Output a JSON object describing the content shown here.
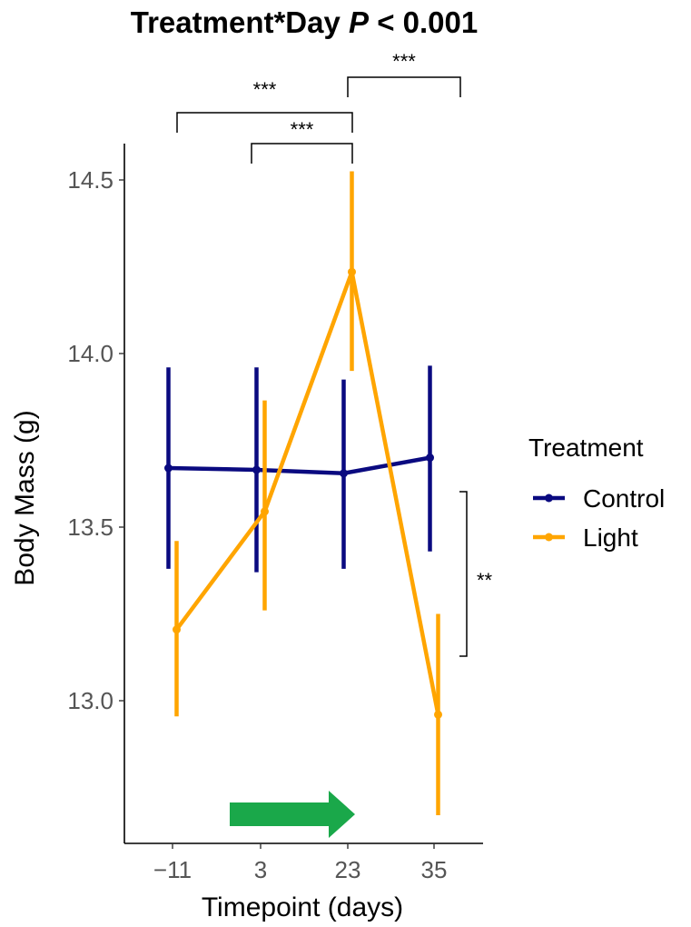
{
  "chart_data": {
    "type": "line",
    "title_prefix": "Treatment*Day ",
    "title_p": "P",
    "title_suffix": " < 0.001",
    "xlabel": "Timepoint (days)",
    "ylabel": "Body Mass (g)",
    "categories": [
      "−11",
      "3",
      "23",
      "35"
    ],
    "y_ticks": [
      "13.0",
      "13.5",
      "14.0",
      "14.5"
    ],
    "ylim": [
      12.6,
      14.62
    ],
    "grid": false,
    "legend_position": "right",
    "legend_title": "Treatment",
    "series": [
      {
        "name": "Control",
        "color": "#0a0a80",
        "values": [
          13.67,
          13.665,
          13.655,
          13.7
        ],
        "lower": [
          13.38,
          13.37,
          13.38,
          13.43
        ],
        "upper": [
          13.96,
          13.96,
          13.925,
          13.965
        ]
      },
      {
        "name": "Light",
        "color": "#ffa500",
        "values": [
          13.205,
          13.545,
          14.235,
          12.96
        ],
        "lower": [
          12.955,
          13.26,
          13.95,
          12.67
        ],
        "upper": [
          13.46,
          13.865,
          14.525,
          13.25
        ]
      }
    ],
    "annotations": {
      "brackets_top": [
        {
          "label": "***",
          "from": 0,
          "to": 2
        },
        {
          "label": "***",
          "from": 1,
          "to": 2
        },
        {
          "label": "***",
          "from": 2,
          "to": 3
        }
      ],
      "bracket_side": {
        "label": "**"
      },
      "arrow": {
        "from": 1,
        "to": 2,
        "color": "#1aa84a"
      }
    }
  }
}
